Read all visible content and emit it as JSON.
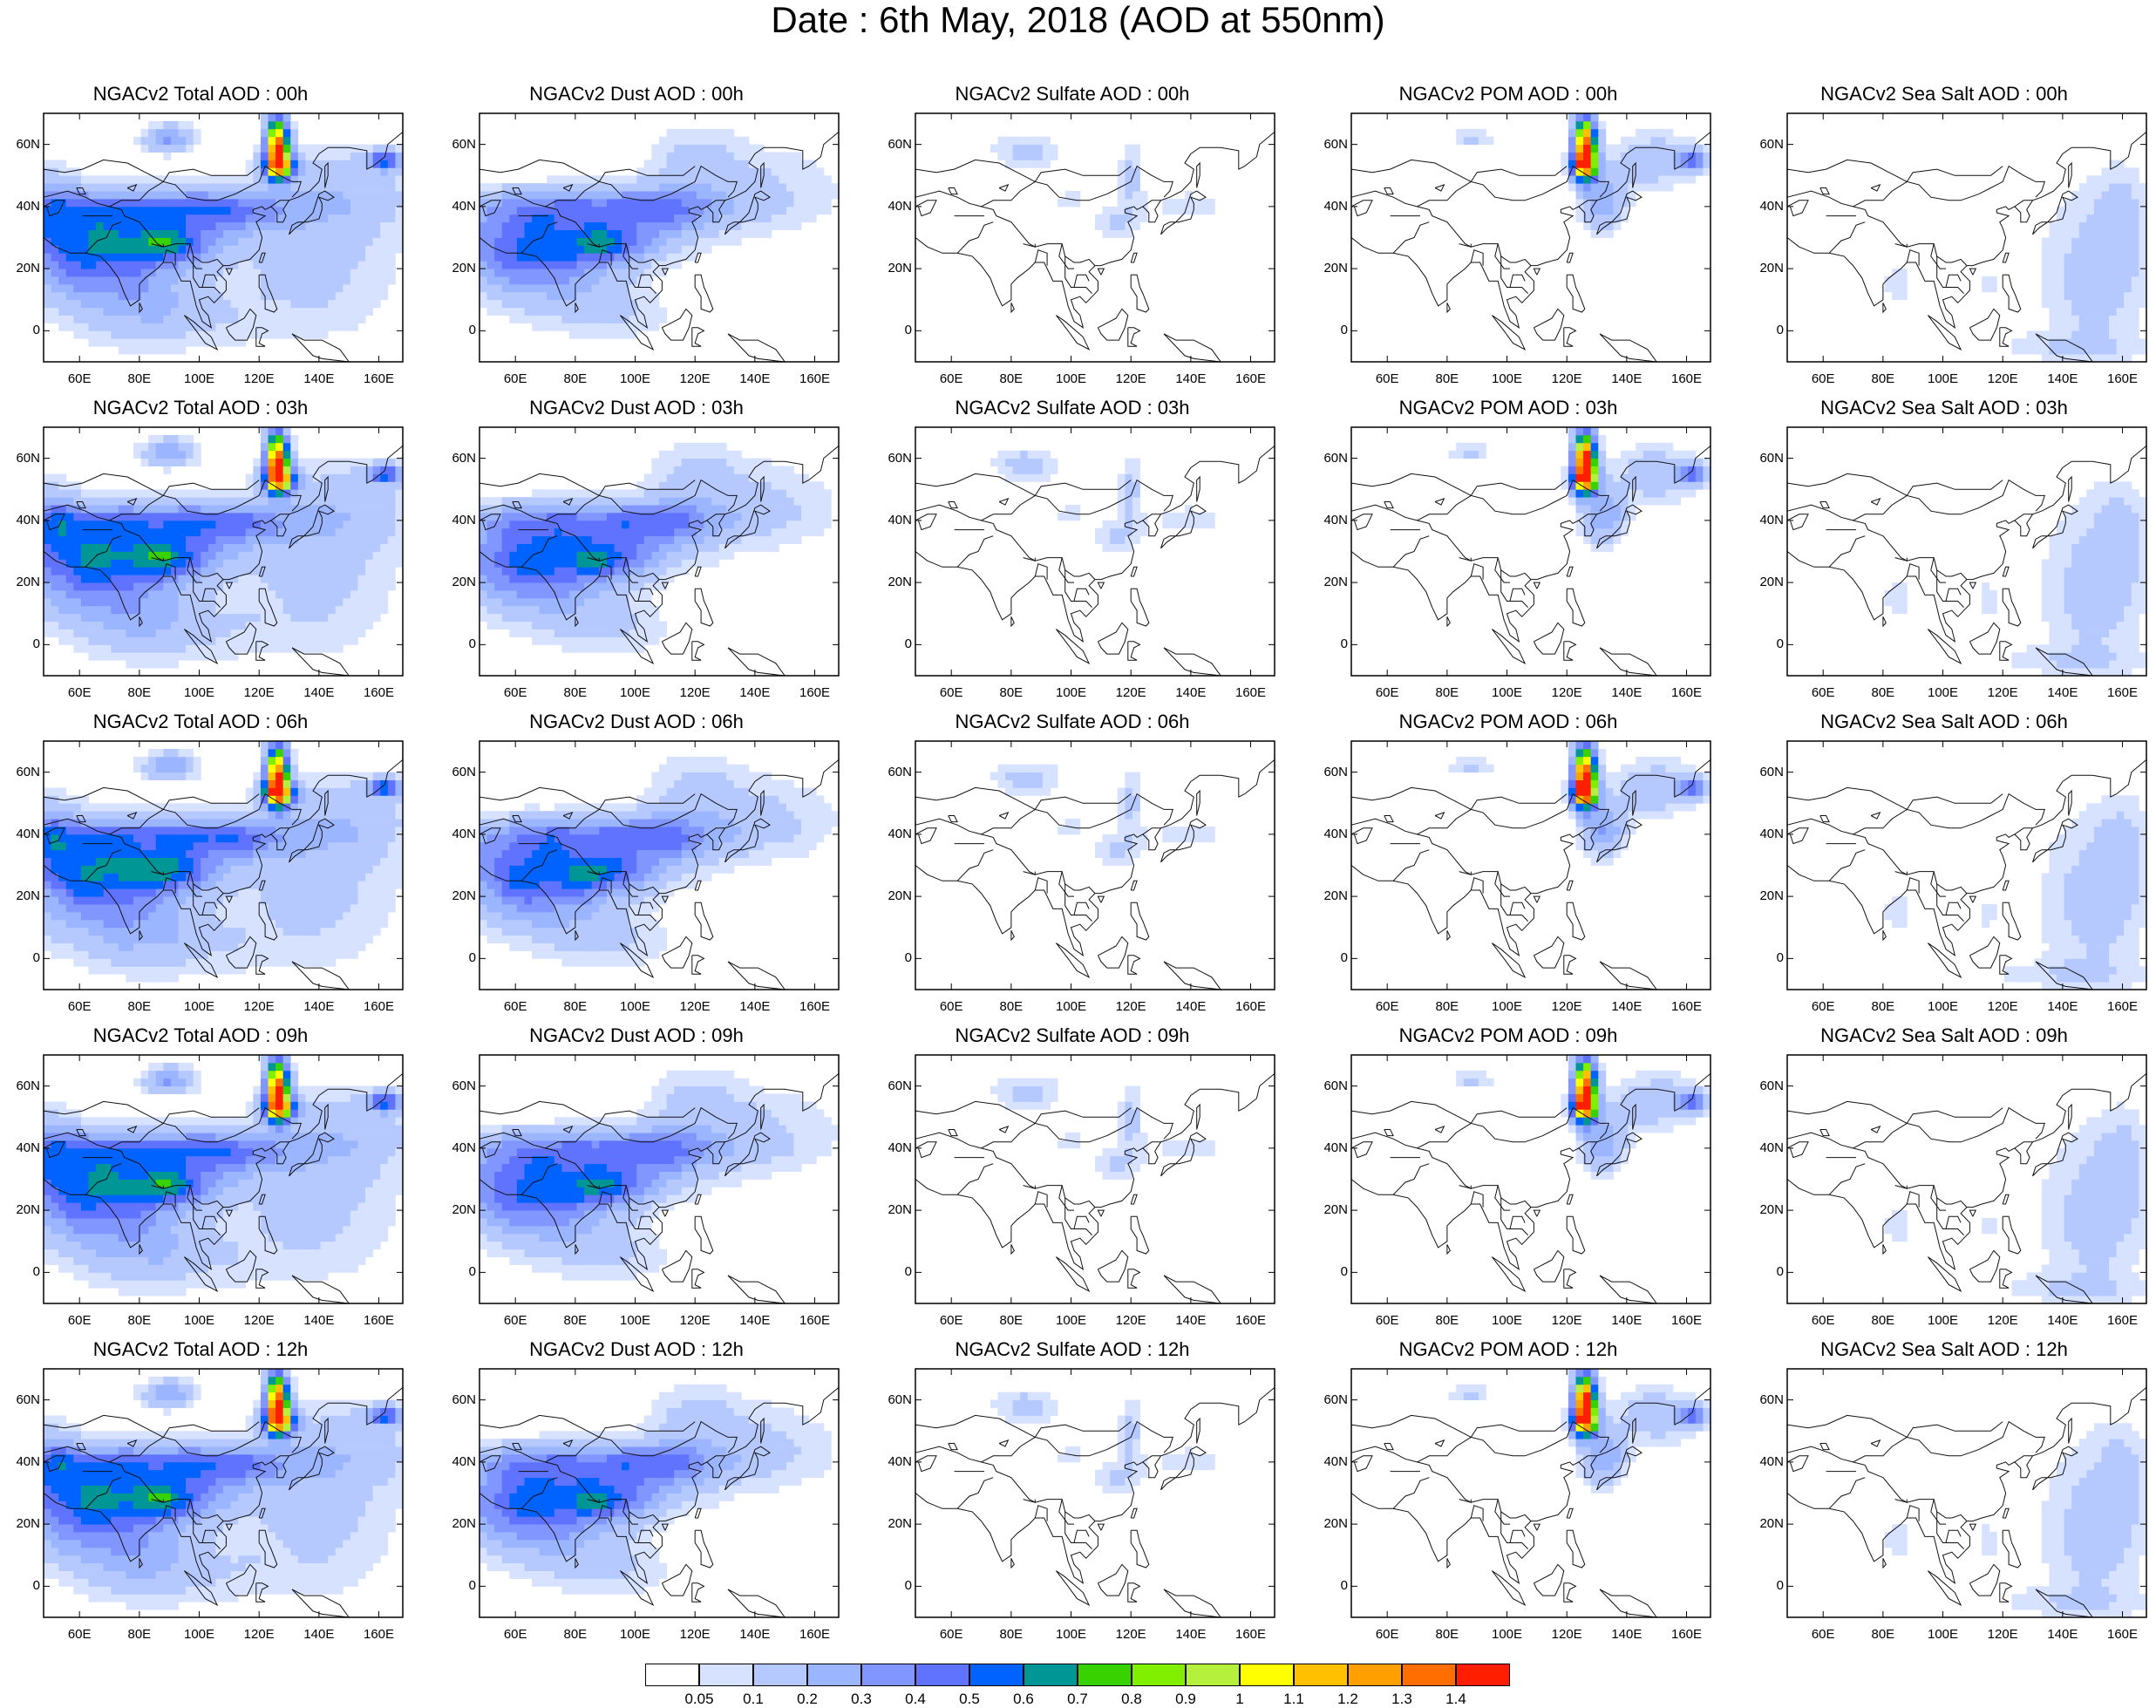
{
  "title": "Date : 6th May, 2018 (AOD at 550nm)",
  "colorbar": {
    "levels": [
      "0.05",
      "0.1",
      "0.2",
      "0.3",
      "0.4",
      "0.5",
      "0.6",
      "0.7",
      "0.8",
      "0.9",
      "1",
      "1.1",
      "1.2",
      "1.3",
      "1.4"
    ],
    "colors": [
      "#ffffff",
      "#d6e2ff",
      "#b5c9ff",
      "#9bb5ff",
      "#8197ff",
      "#5f73ff",
      "#0063ff",
      "#009696",
      "#37d200",
      "#80f000",
      "#b4f03c",
      "#ffff00",
      "#ffc000",
      "#ff9f00",
      "#ff6e00",
      "#ff1e00"
    ]
  },
  "axes": {
    "y_ticks": [
      "60N",
      "40N",
      "20N",
      "0"
    ],
    "x_ticks": [
      "60E",
      "80E",
      "100E",
      "120E",
      "140E",
      "160E"
    ]
  },
  "panels": [
    {
      "title": "NGACv2 Total AOD : 00h",
      "kind": "total"
    },
    {
      "title": "NGACv2 Dust AOD : 00h",
      "kind": "dust"
    },
    {
      "title": "NGACv2 Sulfate AOD : 00h",
      "kind": "sulfate"
    },
    {
      "title": "NGACv2 POM AOD : 00h",
      "kind": "pom"
    },
    {
      "title": "NGACv2 Sea Salt AOD : 00h",
      "kind": "seasalt"
    },
    {
      "title": "NGACv2 Total AOD : 03h",
      "kind": "total"
    },
    {
      "title": "NGACv2 Dust AOD : 03h",
      "kind": "dust"
    },
    {
      "title": "NGACv2 Sulfate AOD : 03h",
      "kind": "sulfate"
    },
    {
      "title": "NGACv2 POM AOD : 03h",
      "kind": "pom"
    },
    {
      "title": "NGACv2 Sea Salt AOD : 03h",
      "kind": "seasalt"
    },
    {
      "title": "NGACv2 Total AOD : 06h",
      "kind": "total"
    },
    {
      "title": "NGACv2 Dust AOD : 06h",
      "kind": "dust"
    },
    {
      "title": "NGACv2 Sulfate AOD : 06h",
      "kind": "sulfate"
    },
    {
      "title": "NGACv2 POM AOD : 06h",
      "kind": "pom"
    },
    {
      "title": "NGACv2 Sea Salt AOD : 06h",
      "kind": "seasalt"
    },
    {
      "title": "NGACv2 Total AOD : 09h",
      "kind": "total"
    },
    {
      "title": "NGACv2 Dust AOD : 09h",
      "kind": "dust"
    },
    {
      "title": "NGACv2 Sulfate AOD : 09h",
      "kind": "sulfate"
    },
    {
      "title": "NGACv2 POM AOD : 09h",
      "kind": "pom"
    },
    {
      "title": "NGACv2 Sea Salt  AOD : 09h",
      "kind": "seasalt"
    },
    {
      "title": "NGACv2 Total AOD  : 12h",
      "kind": "total"
    },
    {
      "title": "NGACv2 Dust AOD : 12h",
      "kind": "dust"
    },
    {
      "title": "NGACv2 Sulfate AOD : 12h",
      "kind": "sulfate"
    },
    {
      "title": "NGACv2 POM  AOD : 12h",
      "kind": "pom"
    },
    {
      "title": "NGACv2 Sea Salt  AOD : 12h",
      "kind": "seasalt"
    }
  ]
}
